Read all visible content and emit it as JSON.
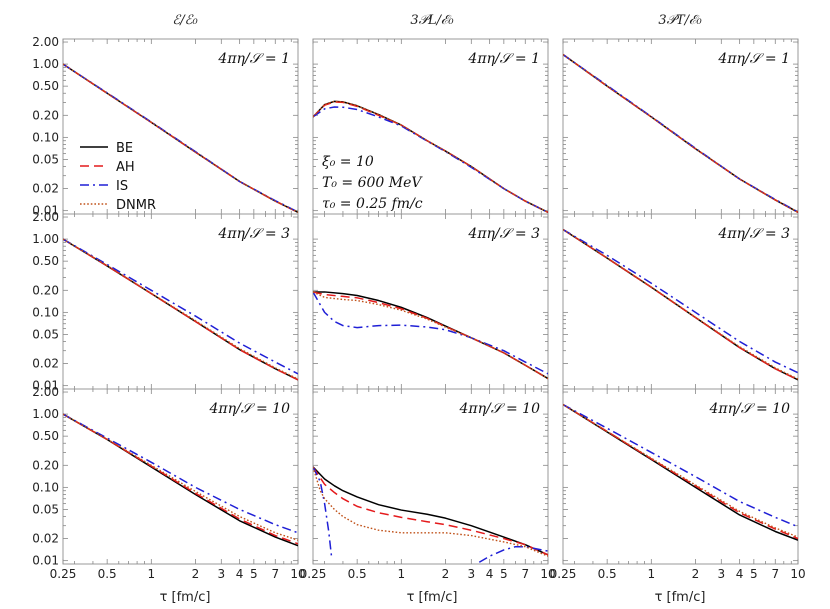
{
  "column_titles": [
    "ℰ/ℰ₀",
    "3𝒫L/ℰ₀",
    "3𝒫T/ℰ₀"
  ],
  "row_labels": [
    "4πη/𝒮 = 1",
    "4πη/𝒮 = 3",
    "4πη/𝒮 = 10"
  ],
  "x_axis_label": "τ [fm/c]",
  "x_tick_labels": [
    "0.25",
    "0.5",
    "1",
    "2",
    "3",
    "4",
    "5",
    "7",
    "10"
  ],
  "y_tick_labels": [
    "2.00",
    "1.00",
    "0.50",
    "0.20",
    "0.10",
    "0.05",
    "0.02",
    "0.01"
  ],
  "legend": [
    {
      "name": "BE",
      "color": "#000000",
      "dash": "solid"
    },
    {
      "name": "AH",
      "color": "#e41a1c",
      "dash": "dashed"
    },
    {
      "name": "IS",
      "color": "#1f1fd6",
      "dash": "dashdot"
    },
    {
      "name": "DNMR",
      "color": "#c0521a",
      "dash": "dotted"
    }
  ],
  "initial_conditions": [
    "ξ₀ = 10",
    "T₀ = 600 MeV",
    "τ₀ = 0.25 fm/c"
  ],
  "chart_data": {
    "type": "line",
    "layout": "3x3 grid",
    "x_scale": "log",
    "y_scale": "log",
    "xlim": [
      0.25,
      10
    ],
    "ylim": [
      0.009,
      2.2
    ],
    "x_ticks": [
      0.25,
      0.5,
      1,
      2,
      3,
      4,
      5,
      7,
      10
    ],
    "y_ticks": [
      2.0,
      1.0,
      0.5,
      0.2,
      0.1,
      0.05,
      0.02,
      0.01
    ],
    "panels": [
      {
        "row": 0,
        "col": 0,
        "series": [
          {
            "name": "BE",
            "x": [
              0.25,
              0.5,
              1,
              2,
              4,
              7,
              10
            ],
            "y": [
              1.0,
              0.4,
              0.16,
              0.063,
              0.025,
              0.0135,
              0.0095
            ]
          },
          {
            "name": "AH",
            "x": [
              0.25,
              0.5,
              1,
              2,
              4,
              7,
              10
            ],
            "y": [
              1.0,
              0.4,
              0.16,
              0.063,
              0.025,
              0.0135,
              0.0095
            ]
          },
          {
            "name": "IS",
            "x": [
              0.25,
              0.5,
              1,
              2,
              4,
              7,
              10
            ],
            "y": [
              1.0,
              0.405,
              0.162,
              0.064,
              0.025,
              0.0137,
              0.0096
            ]
          },
          {
            "name": "DNMR",
            "x": [
              0.25,
              0.5,
              1,
              2,
              4,
              7,
              10
            ],
            "y": [
              1.0,
              0.4,
              0.16,
              0.063,
              0.025,
              0.0135,
              0.0095
            ]
          }
        ]
      },
      {
        "row": 0,
        "col": 1,
        "series": [
          {
            "name": "BE",
            "x": [
              0.25,
              0.3,
              0.35,
              0.4,
              0.5,
              0.7,
              1,
              1.5,
              2,
              3,
              5,
              7,
              10
            ],
            "y": [
              0.19,
              0.28,
              0.31,
              0.305,
              0.27,
              0.205,
              0.147,
              0.09,
              0.065,
              0.04,
              0.02,
              0.0135,
              0.0095
            ]
          },
          {
            "name": "AH",
            "x": [
              0.25,
              0.3,
              0.35,
              0.4,
              0.5,
              0.7,
              1,
              1.5,
              2,
              3,
              5,
              7,
              10
            ],
            "y": [
              0.19,
              0.275,
              0.305,
              0.3,
              0.265,
              0.2,
              0.147,
              0.09,
              0.065,
              0.04,
              0.02,
              0.0135,
              0.0095
            ]
          },
          {
            "name": "IS",
            "x": [
              0.25,
              0.3,
              0.35,
              0.4,
              0.5,
              0.7,
              1,
              1.5,
              2,
              3,
              5,
              7,
              10
            ],
            "y": [
              0.19,
              0.245,
              0.26,
              0.258,
              0.24,
              0.19,
              0.143,
              0.089,
              0.064,
              0.039,
              0.02,
              0.0135,
              0.0095
            ]
          },
          {
            "name": "DNMR",
            "x": [
              0.25,
              0.3,
              0.35,
              0.4,
              0.5,
              0.7,
              1,
              1.5,
              2,
              3,
              5,
              7,
              10
            ],
            "y": [
              0.19,
              0.28,
              0.31,
              0.305,
              0.27,
              0.205,
              0.147,
              0.09,
              0.065,
              0.04,
              0.02,
              0.0135,
              0.0095
            ]
          }
        ]
      },
      {
        "row": 0,
        "col": 2,
        "series": [
          {
            "name": "BE",
            "x": [
              0.25,
              0.5,
              1,
              2,
              4,
              7,
              10
            ],
            "y": [
              1.35,
              0.5,
              0.19,
              0.07,
              0.027,
              0.014,
              0.0095
            ]
          },
          {
            "name": "AH",
            "x": [
              0.25,
              0.5,
              1,
              2,
              4,
              7,
              10
            ],
            "y": [
              1.35,
              0.5,
              0.19,
              0.07,
              0.027,
              0.014,
              0.0095
            ]
          },
          {
            "name": "IS",
            "x": [
              0.25,
              0.5,
              1,
              2,
              4,
              7,
              10
            ],
            "y": [
              1.35,
              0.51,
              0.192,
              0.071,
              0.027,
              0.0142,
              0.0096
            ]
          },
          {
            "name": "DNMR",
            "x": [
              0.25,
              0.5,
              1,
              2,
              4,
              7,
              10
            ],
            "y": [
              1.35,
              0.5,
              0.19,
              0.07,
              0.027,
              0.014,
              0.0095
            ]
          }
        ]
      },
      {
        "row": 1,
        "col": 0,
        "series": [
          {
            "name": "BE",
            "x": [
              0.25,
              0.5,
              1,
              2,
              4,
              7,
              10
            ],
            "y": [
              1.0,
              0.43,
              0.18,
              0.075,
              0.031,
              0.017,
              0.012
            ]
          },
          {
            "name": "AH",
            "x": [
              0.25,
              0.5,
              1,
              2,
              4,
              7,
              10
            ],
            "y": [
              1.0,
              0.43,
              0.18,
              0.075,
              0.031,
              0.017,
              0.012
            ]
          },
          {
            "name": "IS",
            "x": [
              0.25,
              0.5,
              1,
              2,
              4,
              7,
              10
            ],
            "y": [
              1.0,
              0.45,
              0.2,
              0.089,
              0.038,
              0.021,
              0.0145
            ]
          },
          {
            "name": "DNMR",
            "x": [
              0.25,
              0.5,
              1,
              2,
              4,
              7,
              10
            ],
            "y": [
              1.0,
              0.435,
              0.182,
              0.077,
              0.032,
              0.0175,
              0.0123
            ]
          }
        ]
      },
      {
        "row": 1,
        "col": 1,
        "series": [
          {
            "name": "BE",
            "x": [
              0.25,
              0.3,
              0.4,
              0.5,
              0.7,
              1,
              1.5,
              2,
              3,
              5,
              7,
              10
            ],
            "y": [
              0.19,
              0.19,
              0.18,
              0.17,
              0.145,
              0.117,
              0.085,
              0.065,
              0.045,
              0.028,
              0.019,
              0.0125
            ]
          },
          {
            "name": "AH",
            "x": [
              0.25,
              0.3,
              0.4,
              0.5,
              0.7,
              1,
              1.5,
              2,
              3,
              5,
              7,
              10
            ],
            "y": [
              0.19,
              0.175,
              0.165,
              0.158,
              0.136,
              0.112,
              0.083,
              0.064,
              0.045,
              0.028,
              0.019,
              0.0125
            ]
          },
          {
            "name": "IS",
            "x": [
              0.25,
              0.3,
              0.35,
              0.4,
              0.5,
              0.7,
              1,
              1.5,
              2,
              3,
              5,
              7,
              10
            ],
            "y": [
              0.19,
              0.1,
              0.075,
              0.066,
              0.062,
              0.066,
              0.067,
              0.063,
              0.058,
              0.045,
              0.03,
              0.021,
              0.0145
            ]
          },
          {
            "name": "DNMR",
            "x": [
              0.25,
              0.3,
              0.4,
              0.5,
              0.7,
              1,
              1.5,
              2,
              3,
              5,
              7,
              10
            ],
            "y": [
              0.19,
              0.16,
              0.15,
              0.145,
              0.128,
              0.107,
              0.081,
              0.063,
              0.045,
              0.028,
              0.019,
              0.0125
            ]
          }
        ]
      },
      {
        "row": 1,
        "col": 2,
        "series": [
          {
            "name": "BE",
            "x": [
              0.25,
              0.5,
              1,
              2,
              4,
              7,
              10
            ],
            "y": [
              1.35,
              0.55,
              0.22,
              0.085,
              0.033,
              0.017,
              0.012
            ]
          },
          {
            "name": "AH",
            "x": [
              0.25,
              0.5,
              1,
              2,
              4,
              7,
              10
            ],
            "y": [
              1.35,
              0.55,
              0.22,
              0.085,
              0.033,
              0.017,
              0.012
            ]
          },
          {
            "name": "IS",
            "x": [
              0.25,
              0.5,
              1,
              2,
              4,
              7,
              10
            ],
            "y": [
              1.35,
              0.6,
              0.25,
              0.1,
              0.04,
              0.021,
              0.015
            ]
          },
          {
            "name": "DNMR",
            "x": [
              0.25,
              0.5,
              1,
              2,
              4,
              7,
              10
            ],
            "y": [
              1.35,
              0.555,
              0.222,
              0.086,
              0.034,
              0.0175,
              0.0123
            ]
          }
        ]
      },
      {
        "row": 2,
        "col": 0,
        "series": [
          {
            "name": "BE",
            "x": [
              0.25,
              0.5,
              1,
              2,
              4,
              7,
              10
            ],
            "y": [
              1.0,
              0.45,
              0.19,
              0.08,
              0.035,
              0.021,
              0.016
            ]
          },
          {
            "name": "AH",
            "x": [
              0.25,
              0.5,
              1,
              2,
              4,
              7,
              10
            ],
            "y": [
              1.0,
              0.45,
              0.195,
              0.083,
              0.037,
              0.022,
              0.017
            ]
          },
          {
            "name": "IS",
            "x": [
              0.25,
              0.5,
              1,
              2,
              4,
              7,
              10
            ],
            "y": [
              1.0,
              0.47,
              0.22,
              0.1,
              0.05,
              0.031,
              0.024
            ]
          },
          {
            "name": "DNMR",
            "x": [
              0.25,
              0.5,
              1,
              2,
              4,
              7,
              10
            ],
            "y": [
              1.0,
              0.455,
              0.2,
              0.088,
              0.04,
              0.024,
              0.019
            ]
          }
        ]
      },
      {
        "row": 2,
        "col": 1,
        "series": [
          {
            "name": "BE",
            "x": [
              0.25,
              0.3,
              0.35,
              0.4,
              0.5,
              0.7,
              1,
              1.5,
              2,
              3,
              5,
              7,
              10
            ],
            "y": [
              0.19,
              0.13,
              0.105,
              0.09,
              0.074,
              0.058,
              0.049,
              0.043,
              0.038,
              0.03,
              0.021,
              0.0165,
              0.012
            ]
          },
          {
            "name": "AH",
            "x": [
              0.25,
              0.3,
              0.35,
              0.4,
              0.5,
              0.7,
              1,
              1.5,
              2,
              3,
              5,
              7,
              10
            ],
            "y": [
              0.19,
              0.11,
              0.085,
              0.07,
              0.055,
              0.045,
              0.039,
              0.034,
              0.031,
              0.026,
              0.02,
              0.0165,
              0.012
            ]
          },
          {
            "name": "IS",
            "x": [
              0.25,
              0.28,
              0.3,
              0.32,
              0.335
            ],
            "y": [
              0.19,
              0.12,
              0.06,
              0.025,
              0.011
            ]
          },
          {
            "name": "IS",
            "x": [
              3.4,
              4,
              5,
              6,
              7,
              10
            ],
            "y": [
              0.0095,
              0.0115,
              0.014,
              0.0155,
              0.0155,
              0.0135
            ]
          },
          {
            "name": "DNMR",
            "x": [
              0.25,
              0.28,
              0.3,
              0.35,
              0.4,
              0.5,
              0.7,
              1,
              1.5,
              2,
              3,
              5,
              7,
              10
            ],
            "y": [
              0.19,
              0.09,
              0.07,
              0.05,
              0.04,
              0.031,
              0.026,
              0.024,
              0.024,
              0.024,
              0.022,
              0.018,
              0.0155,
              0.0115
            ]
          }
        ]
      },
      {
        "row": 2,
        "col": 2,
        "series": [
          {
            "name": "BE",
            "x": [
              0.25,
              0.5,
              1,
              2,
              4,
              7,
              10
            ],
            "y": [
              1.35,
              0.57,
              0.24,
              0.1,
              0.042,
              0.025,
              0.019
            ]
          },
          {
            "name": "AH",
            "x": [
              0.25,
              0.5,
              1,
              2,
              4,
              7,
              10
            ],
            "y": [
              1.35,
              0.58,
              0.245,
              0.105,
              0.045,
              0.027,
              0.02
            ]
          },
          {
            "name": "IS",
            "x": [
              0.25,
              0.5,
              1,
              2,
              4,
              7,
              10
            ],
            "y": [
              1.35,
              0.64,
              0.3,
              0.14,
              0.064,
              0.039,
              0.029
            ]
          },
          {
            "name": "DNMR",
            "x": [
              0.25,
              0.5,
              1,
              2,
              4,
              7,
              10
            ],
            "y": [
              1.35,
              0.58,
              0.25,
              0.108,
              0.047,
              0.028,
              0.021
            ]
          }
        ]
      }
    ]
  }
}
